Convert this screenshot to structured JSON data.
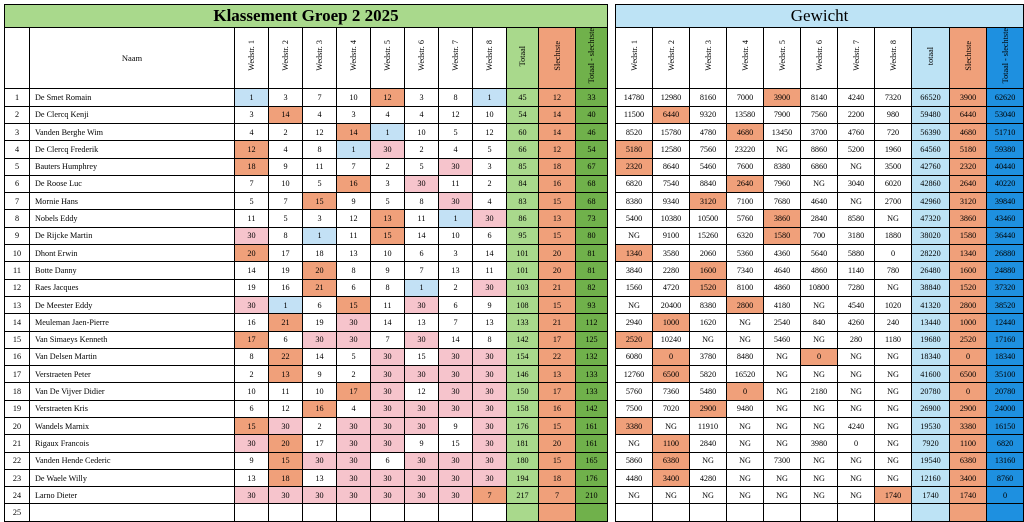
{
  "left_title": "Klassement Groep 2 2025",
  "right_title": "Gewicht",
  "left_headers": [
    "Naam",
    "Wedstr. 1",
    "Wedstr. 2",
    "Wedstr. 3",
    "Wedstr. 4",
    "Wedstr. 5",
    "Wedstr. 6",
    "Wedstr. 7",
    "Wedstr. 8",
    "Totaal",
    "Slechtste",
    "Totaal - slechtste"
  ],
  "right_headers": [
    "Wedstr. 1",
    "Wedstr. 2",
    "Wedstr. 3",
    "Wedstr. 4",
    "Wedstr. 5",
    "Wedstr. 6",
    "Wedstr. 7",
    "Wedstr. 8",
    "totaal",
    "Slechtste",
    "Totaal - slechtste"
  ],
  "colors": {
    "green": "#a9d98c",
    "dark_green": "#70b14b",
    "orange": "#f0a07a",
    "pink": "#f6c4cc",
    "blue": "#c3e1f5",
    "light_blue": "#bde3f5",
    "dark_blue": "#1e90e0"
  },
  "rows": [
    {
      "nr": "1",
      "name": "De Smet Romain",
      "scores": [
        "1",
        "3",
        "7",
        "10",
        "12",
        "3",
        "8",
        "1"
      ],
      "marks": [
        "b",
        "",
        "",
        "",
        "o",
        "",
        "",
        "b"
      ],
      "tot": "45",
      "worst": "12",
      "net": "33",
      "w": [
        "14780",
        "12980",
        "8160",
        "7000",
        "3900",
        "8140",
        "4240",
        "7320"
      ],
      "wm": [
        "",
        "",
        "",
        "",
        "o",
        "",
        "",
        ""
      ],
      "wt": "66520",
      "ww": "3900",
      "wn": "62620"
    },
    {
      "nr": "2",
      "name": "De Clercq Kenji",
      "scores": [
        "3",
        "14",
        "4",
        "3",
        "4",
        "4",
        "12",
        "10"
      ],
      "marks": [
        "",
        "o",
        "",
        "",
        "",
        "",
        "",
        ""
      ],
      "tot": "54",
      "worst": "14",
      "net": "40",
      "w": [
        "11500",
        "6440",
        "9320",
        "13580",
        "7900",
        "7560",
        "2200",
        "980"
      ],
      "wm": [
        "",
        "o",
        "",
        "",
        "",
        "",
        "",
        ""
      ],
      "wt": "59480",
      "ww": "6440",
      "wn": "53040"
    },
    {
      "nr": "3",
      "name": "Vanden Berghe Wim",
      "scores": [
        "4",
        "2",
        "12",
        "14",
        "1",
        "10",
        "5",
        "12"
      ],
      "marks": [
        "",
        "",
        "",
        "o",
        "b",
        "",
        "",
        ""
      ],
      "tot": "60",
      "worst": "14",
      "net": "46",
      "w": [
        "8520",
        "15780",
        "4780",
        "4680",
        "13450",
        "3700",
        "4760",
        "720"
      ],
      "wm": [
        "",
        "",
        "",
        "o",
        "",
        "",
        "",
        ""
      ],
      "wt": "56390",
      "ww": "4680",
      "wn": "51710"
    },
    {
      "nr": "4",
      "name": "De Clercq Frederik",
      "scores": [
        "12",
        "4",
        "8",
        "1",
        "30",
        "2",
        "4",
        "5"
      ],
      "marks": [
        "o",
        "",
        "",
        "b",
        "p",
        "",
        "",
        ""
      ],
      "tot": "66",
      "worst": "12",
      "net": "54",
      "w": [
        "5180",
        "12580",
        "7560",
        "23220",
        "NG",
        "8860",
        "5200",
        "1960"
      ],
      "wm": [
        "o",
        "",
        "",
        "",
        "",
        "",
        "",
        ""
      ],
      "wt": "64560",
      "ww": "5180",
      "wn": "59380"
    },
    {
      "nr": "5",
      "name": "Bauters Humphrey",
      "scores": [
        "18",
        "9",
        "11",
        "7",
        "2",
        "5",
        "30",
        "3"
      ],
      "marks": [
        "o",
        "",
        "",
        "",
        "",
        "",
        "p",
        ""
      ],
      "tot": "85",
      "worst": "18",
      "net": "67",
      "w": [
        "2320",
        "8640",
        "5460",
        "7600",
        "8380",
        "6860",
        "NG",
        "3500"
      ],
      "wm": [
        "o",
        "",
        "",
        "",
        "",
        "",
        "",
        ""
      ],
      "wt": "42760",
      "ww": "2320",
      "wn": "40440"
    },
    {
      "nr": "6",
      "name": "De Roose Luc",
      "scores": [
        "7",
        "10",
        "5",
        "16",
        "3",
        "30",
        "11",
        "2"
      ],
      "marks": [
        "",
        "",
        "",
        "o",
        "",
        "p",
        "",
        ""
      ],
      "tot": "84",
      "worst": "16",
      "net": "68",
      "w": [
        "6820",
        "7540",
        "8840",
        "2640",
        "7960",
        "NG",
        "3040",
        "6020"
      ],
      "wm": [
        "",
        "",
        "",
        "o",
        "",
        "",
        "",
        ""
      ],
      "wt": "42860",
      "ww": "2640",
      "wn": "40220"
    },
    {
      "nr": "7",
      "name": "Mornie Hans",
      "scores": [
        "5",
        "7",
        "15",
        "9",
        "5",
        "8",
        "30",
        "4"
      ],
      "marks": [
        "",
        "",
        "o",
        "",
        "",
        "",
        "p",
        ""
      ],
      "tot": "83",
      "worst": "15",
      "net": "68",
      "w": [
        "8380",
        "9340",
        "3120",
        "7100",
        "7680",
        "4640",
        "NG",
        "2700"
      ],
      "wm": [
        "",
        "",
        "o",
        "",
        "",
        "",
        "",
        ""
      ],
      "wt": "42960",
      "ww": "3120",
      "wn": "39840"
    },
    {
      "nr": "8",
      "name": "Nobels Eddy",
      "scores": [
        "11",
        "5",
        "3",
        "12",
        "13",
        "11",
        "1",
        "30"
      ],
      "marks": [
        "",
        "",
        "",
        "",
        "o",
        "",
        "b",
        "p"
      ],
      "tot": "86",
      "worst": "13",
      "net": "73",
      "w": [
        "5400",
        "10380",
        "10500",
        "5760",
        "3860",
        "2840",
        "8580",
        "NG"
      ],
      "wm": [
        "",
        "",
        "",
        "",
        "o",
        "",
        "",
        ""
      ],
      "wt": "47320",
      "ww": "3860",
      "wn": "43460"
    },
    {
      "nr": "9",
      "name": "De Rijcke Martin",
      "scores": [
        "30",
        "8",
        "1",
        "11",
        "15",
        "14",
        "10",
        "6"
      ],
      "marks": [
        "p",
        "",
        "b",
        "",
        "o",
        "",
        "",
        ""
      ],
      "tot": "95",
      "worst": "15",
      "net": "80",
      "w": [
        "NG",
        "9100",
        "15260",
        "6320",
        "1580",
        "700",
        "3180",
        "1880"
      ],
      "wm": [
        "",
        "",
        "",
        "",
        "o",
        "",
        "",
        ""
      ],
      "wt": "38020",
      "ww": "1580",
      "wn": "36440"
    },
    {
      "nr": "10",
      "name": "Dhont Erwin",
      "scores": [
        "20",
        "17",
        "18",
        "13",
        "10",
        "6",
        "3",
        "14"
      ],
      "marks": [
        "o",
        "",
        "",
        "",
        "",
        "",
        "",
        ""
      ],
      "tot": "101",
      "worst": "20",
      "net": "81",
      "w": [
        "1340",
        "3580",
        "2060",
        "5360",
        "4360",
        "5640",
        "5880",
        "0"
      ],
      "wm": [
        "o",
        "",
        "",
        "",
        "",
        "",
        "",
        ""
      ],
      "wt": "28220",
      "ww": "1340",
      "wn": "26880"
    },
    {
      "nr": "11",
      "name": "Botte Danny",
      "scores": [
        "14",
        "19",
        "20",
        "8",
        "9",
        "7",
        "13",
        "11"
      ],
      "marks": [
        "",
        "",
        "o",
        "",
        "",
        "",
        "",
        ""
      ],
      "tot": "101",
      "worst": "20",
      "net": "81",
      "w": [
        "3840",
        "2280",
        "1600",
        "7340",
        "4640",
        "4860",
        "1140",
        "780"
      ],
      "wm": [
        "",
        "",
        "o",
        "",
        "",
        "",
        "",
        ""
      ],
      "wt": "26480",
      "ww": "1600",
      "wn": "24880"
    },
    {
      "nr": "12",
      "name": "Raes Jacques",
      "scores": [
        "19",
        "16",
        "21",
        "6",
        "8",
        "1",
        "2",
        "30"
      ],
      "marks": [
        "",
        "",
        "o",
        "",
        "",
        "b",
        "",
        "p"
      ],
      "tot": "103",
      "worst": "21",
      "net": "82",
      "w": [
        "1560",
        "4720",
        "1520",
        "8100",
        "4860",
        "10800",
        "7280",
        "NG"
      ],
      "wm": [
        "",
        "",
        "o",
        "",
        "",
        "",
        "",
        ""
      ],
      "wt": "38840",
      "ww": "1520",
      "wn": "37320"
    },
    {
      "nr": "13",
      "name": "De Meester Eddy",
      "scores": [
        "30",
        "1",
        "6",
        "15",
        "11",
        "30",
        "6",
        "9"
      ],
      "marks": [
        "p",
        "b",
        "",
        "o",
        "",
        "p",
        "",
        ""
      ],
      "tot": "108",
      "worst": "15",
      "net": "93",
      "w": [
        "NG",
        "20400",
        "8380",
        "2800",
        "4180",
        "NG",
        "4540",
        "1020"
      ],
      "wm": [
        "",
        "",
        "",
        "o",
        "",
        "",
        "",
        ""
      ],
      "wt": "41320",
      "ww": "2800",
      "wn": "38520"
    },
    {
      "nr": "14",
      "name": "Meuleman Jaen-Pierre",
      "scores": [
        "16",
        "21",
        "19",
        "30",
        "14",
        "13",
        "7",
        "13"
      ],
      "marks": [
        "",
        "o",
        "",
        "p",
        "",
        "",
        "",
        ""
      ],
      "tot": "133",
      "worst": "21",
      "net": "112",
      "w": [
        "2940",
        "1000",
        "1620",
        "NG",
        "2540",
        "840",
        "4260",
        "240"
      ],
      "wm": [
        "",
        "o",
        "",
        "",
        "",
        "",
        "",
        ""
      ],
      "wt": "13440",
      "ww": "1000",
      "wn": "12440"
    },
    {
      "nr": "15",
      "name": "Van Simaeys Kenneth",
      "scores": [
        "17",
        "6",
        "30",
        "30",
        "7",
        "30",
        "14",
        "8"
      ],
      "marks": [
        "o",
        "",
        "p",
        "p",
        "",
        "p",
        "",
        ""
      ],
      "tot": "142",
      "worst": "17",
      "net": "125",
      "w": [
        "2520",
        "10240",
        "NG",
        "NG",
        "5460",
        "NG",
        "280",
        "1180"
      ],
      "wm": [
        "o",
        "",
        "",
        "",
        "",
        "",
        "",
        ""
      ],
      "wt": "19680",
      "ww": "2520",
      "wn": "17160"
    },
    {
      "nr": "16",
      "name": "Van Delsen Martin",
      "scores": [
        "8",
        "22",
        "14",
        "5",
        "30",
        "15",
        "30",
        "30"
      ],
      "marks": [
        "",
        "o",
        "",
        "",
        "p",
        "",
        "p",
        "p"
      ],
      "tot": "154",
      "worst": "22",
      "net": "132",
      "w": [
        "6080",
        "0",
        "3780",
        "8480",
        "NG",
        "0",
        "NG",
        "NG"
      ],
      "wm": [
        "",
        "o",
        "",
        "",
        "",
        "o",
        "",
        ""
      ],
      "wt": "18340",
      "ww": "0",
      "wn": "18340"
    },
    {
      "nr": "17",
      "name": "Verstraeten Peter",
      "scores": [
        "2",
        "13",
        "9",
        "2",
        "30",
        "30",
        "30",
        "30"
      ],
      "marks": [
        "",
        "o",
        "",
        "",
        "p",
        "p",
        "p",
        "p"
      ],
      "tot": "146",
      "worst": "13",
      "net": "133",
      "w": [
        "12760",
        "6500",
        "5820",
        "16520",
        "NG",
        "NG",
        "NG",
        "NG"
      ],
      "wm": [
        "",
        "o",
        "",
        "",
        "",
        "",
        "",
        ""
      ],
      "wt": "41600",
      "ww": "6500",
      "wn": "35100"
    },
    {
      "nr": "18",
      "name": "Van De Vijver Didier",
      "scores": [
        "10",
        "11",
        "10",
        "17",
        "30",
        "12",
        "30",
        "30"
      ],
      "marks": [
        "",
        "",
        "",
        "o",
        "p",
        "",
        "p",
        "p"
      ],
      "tot": "150",
      "worst": "17",
      "net": "133",
      "w": [
        "5760",
        "7360",
        "5480",
        "0",
        "NG",
        "2180",
        "NG",
        "NG"
      ],
      "wm": [
        "",
        "",
        "",
        "o",
        "",
        "",
        "",
        ""
      ],
      "wt": "20780",
      "ww": "0",
      "wn": "20780"
    },
    {
      "nr": "19",
      "name": "Verstraeten Kris",
      "scores": [
        "6",
        "12",
        "16",
        "4",
        "30",
        "30",
        "30",
        "30"
      ],
      "marks": [
        "",
        "",
        "o",
        "",
        "p",
        "p",
        "p",
        "p"
      ],
      "tot": "158",
      "worst": "16",
      "net": "142",
      "w": [
        "7500",
        "7020",
        "2900",
        "9480",
        "NG",
        "NG",
        "NG",
        "NG"
      ],
      "wm": [
        "",
        "",
        "o",
        "",
        "",
        "",
        "",
        ""
      ],
      "wt": "26900",
      "ww": "2900",
      "wn": "24000"
    },
    {
      "nr": "20",
      "name": "Wandels Marnix",
      "scores": [
        "15",
        "30",
        "2",
        "30",
        "30",
        "30",
        "9",
        "30"
      ],
      "marks": [
        "o",
        "p",
        "",
        "p",
        "p",
        "p",
        "",
        "p"
      ],
      "tot": "176",
      "worst": "15",
      "net": "161",
      "w": [
        "3380",
        "NG",
        "11910",
        "NG",
        "NG",
        "NG",
        "4240",
        "NG"
      ],
      "wm": [
        "o",
        "",
        "",
        "",
        "",
        "",
        "",
        ""
      ],
      "wt": "19530",
      "ww": "3380",
      "wn": "16150"
    },
    {
      "nr": "21",
      "name": "Rigaux Francois",
      "scores": [
        "30",
        "20",
        "17",
        "30",
        "30",
        "9",
        "15",
        "30"
      ],
      "marks": [
        "p",
        "o",
        "",
        "p",
        "p",
        "",
        "",
        "p"
      ],
      "tot": "181",
      "worst": "20",
      "net": "161",
      "w": [
        "NG",
        "1100",
        "2840",
        "NG",
        "NG",
        "3980",
        "0",
        "NG"
      ],
      "wm": [
        "",
        "o",
        "",
        "",
        "",
        "",
        "",
        ""
      ],
      "wt": "7920",
      "ww": "1100",
      "wn": "6820"
    },
    {
      "nr": "22",
      "name": "Vanden Hende Cederic",
      "scores": [
        "9",
        "15",
        "30",
        "30",
        "6",
        "30",
        "30",
        "30"
      ],
      "marks": [
        "",
        "o",
        "p",
        "p",
        "",
        "p",
        "p",
        "p"
      ],
      "tot": "180",
      "worst": "15",
      "net": "165",
      "w": [
        "5860",
        "6380",
        "NG",
        "NG",
        "7300",
        "NG",
        "NG",
        "NG"
      ],
      "wm": [
        "",
        "o",
        "",
        "",
        "",
        "",
        "",
        ""
      ],
      "wt": "19540",
      "ww": "6380",
      "wn": "13160"
    },
    {
      "nr": "23",
      "name": "De Waele Willy",
      "scores": [
        "13",
        "18",
        "13",
        "30",
        "30",
        "30",
        "30",
        "30"
      ],
      "marks": [
        "",
        "o",
        "",
        "p",
        "p",
        "p",
        "p",
        "p"
      ],
      "tot": "194",
      "worst": "18",
      "net": "176",
      "w": [
        "4480",
        "3400",
        "4280",
        "NG",
        "NG",
        "NG",
        "NG",
        "NG"
      ],
      "wm": [
        "",
        "o",
        "",
        "",
        "",
        "",
        "",
        ""
      ],
      "wt": "12160",
      "ww": "3400",
      "wn": "8760"
    },
    {
      "nr": "24",
      "name": "Larno Dieter",
      "scores": [
        "30",
        "30",
        "30",
        "30",
        "30",
        "30",
        "30",
        "7"
      ],
      "marks": [
        "p",
        "p",
        "p",
        "p",
        "p",
        "p",
        "p",
        "o"
      ],
      "tot": "217",
      "worst": "7",
      "net": "210",
      "w": [
        "NG",
        "NG",
        "NG",
        "NG",
        "NG",
        "NG",
        "NG",
        "1740"
      ],
      "wm": [
        "",
        "",
        "",
        "",
        "",
        "",
        "",
        "o"
      ],
      "wt": "1740",
      "ww": "1740",
      "wn": "0"
    },
    {
      "nr": "25",
      "name": "",
      "scores": [
        "",
        "",
        "",
        "",
        "",
        "",
        "",
        ""
      ],
      "marks": [
        "",
        "",
        "",
        "",
        "",
        "",
        "",
        ""
      ],
      "tot": "",
      "worst": "",
      "net": "",
      "w": [
        "",
        "",
        "",
        "",
        "",
        "",
        "",
        ""
      ],
      "wm": [
        "",
        "",
        "",
        "",
        "",
        "",
        "",
        ""
      ],
      "wt": "",
      "ww": "",
      "wn": ""
    }
  ]
}
